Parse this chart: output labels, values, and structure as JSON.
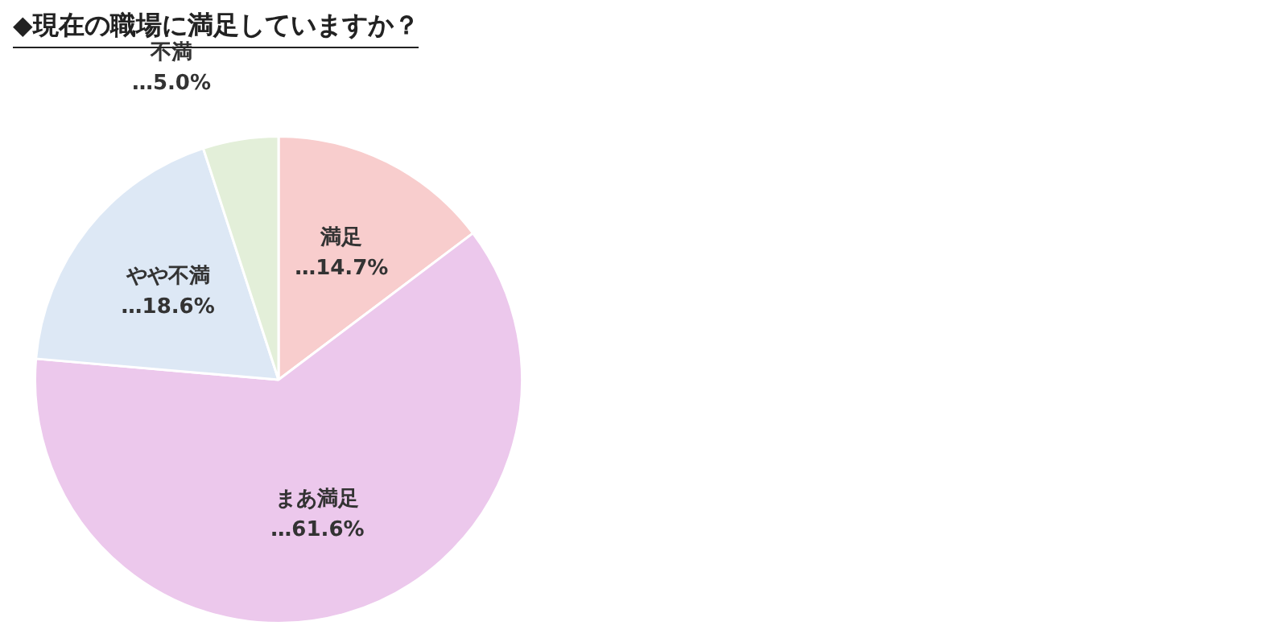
{
  "chart_data": {
    "type": "pie",
    "title": "◆現在の職場に満足していますか？",
    "categories": [
      "満足",
      "まあ満足",
      "やや不満",
      "不満"
    ],
    "values": [
      14.7,
      61.6,
      18.6,
      5.0
    ],
    "value_labels": [
      "…14.7%",
      "…61.6%",
      "…18.6%",
      "…5.0%"
    ],
    "colors": [
      "#f8cdcd",
      "#ecc8ec",
      "#dde8f5",
      "#e3efd9"
    ],
    "legend": false
  }
}
